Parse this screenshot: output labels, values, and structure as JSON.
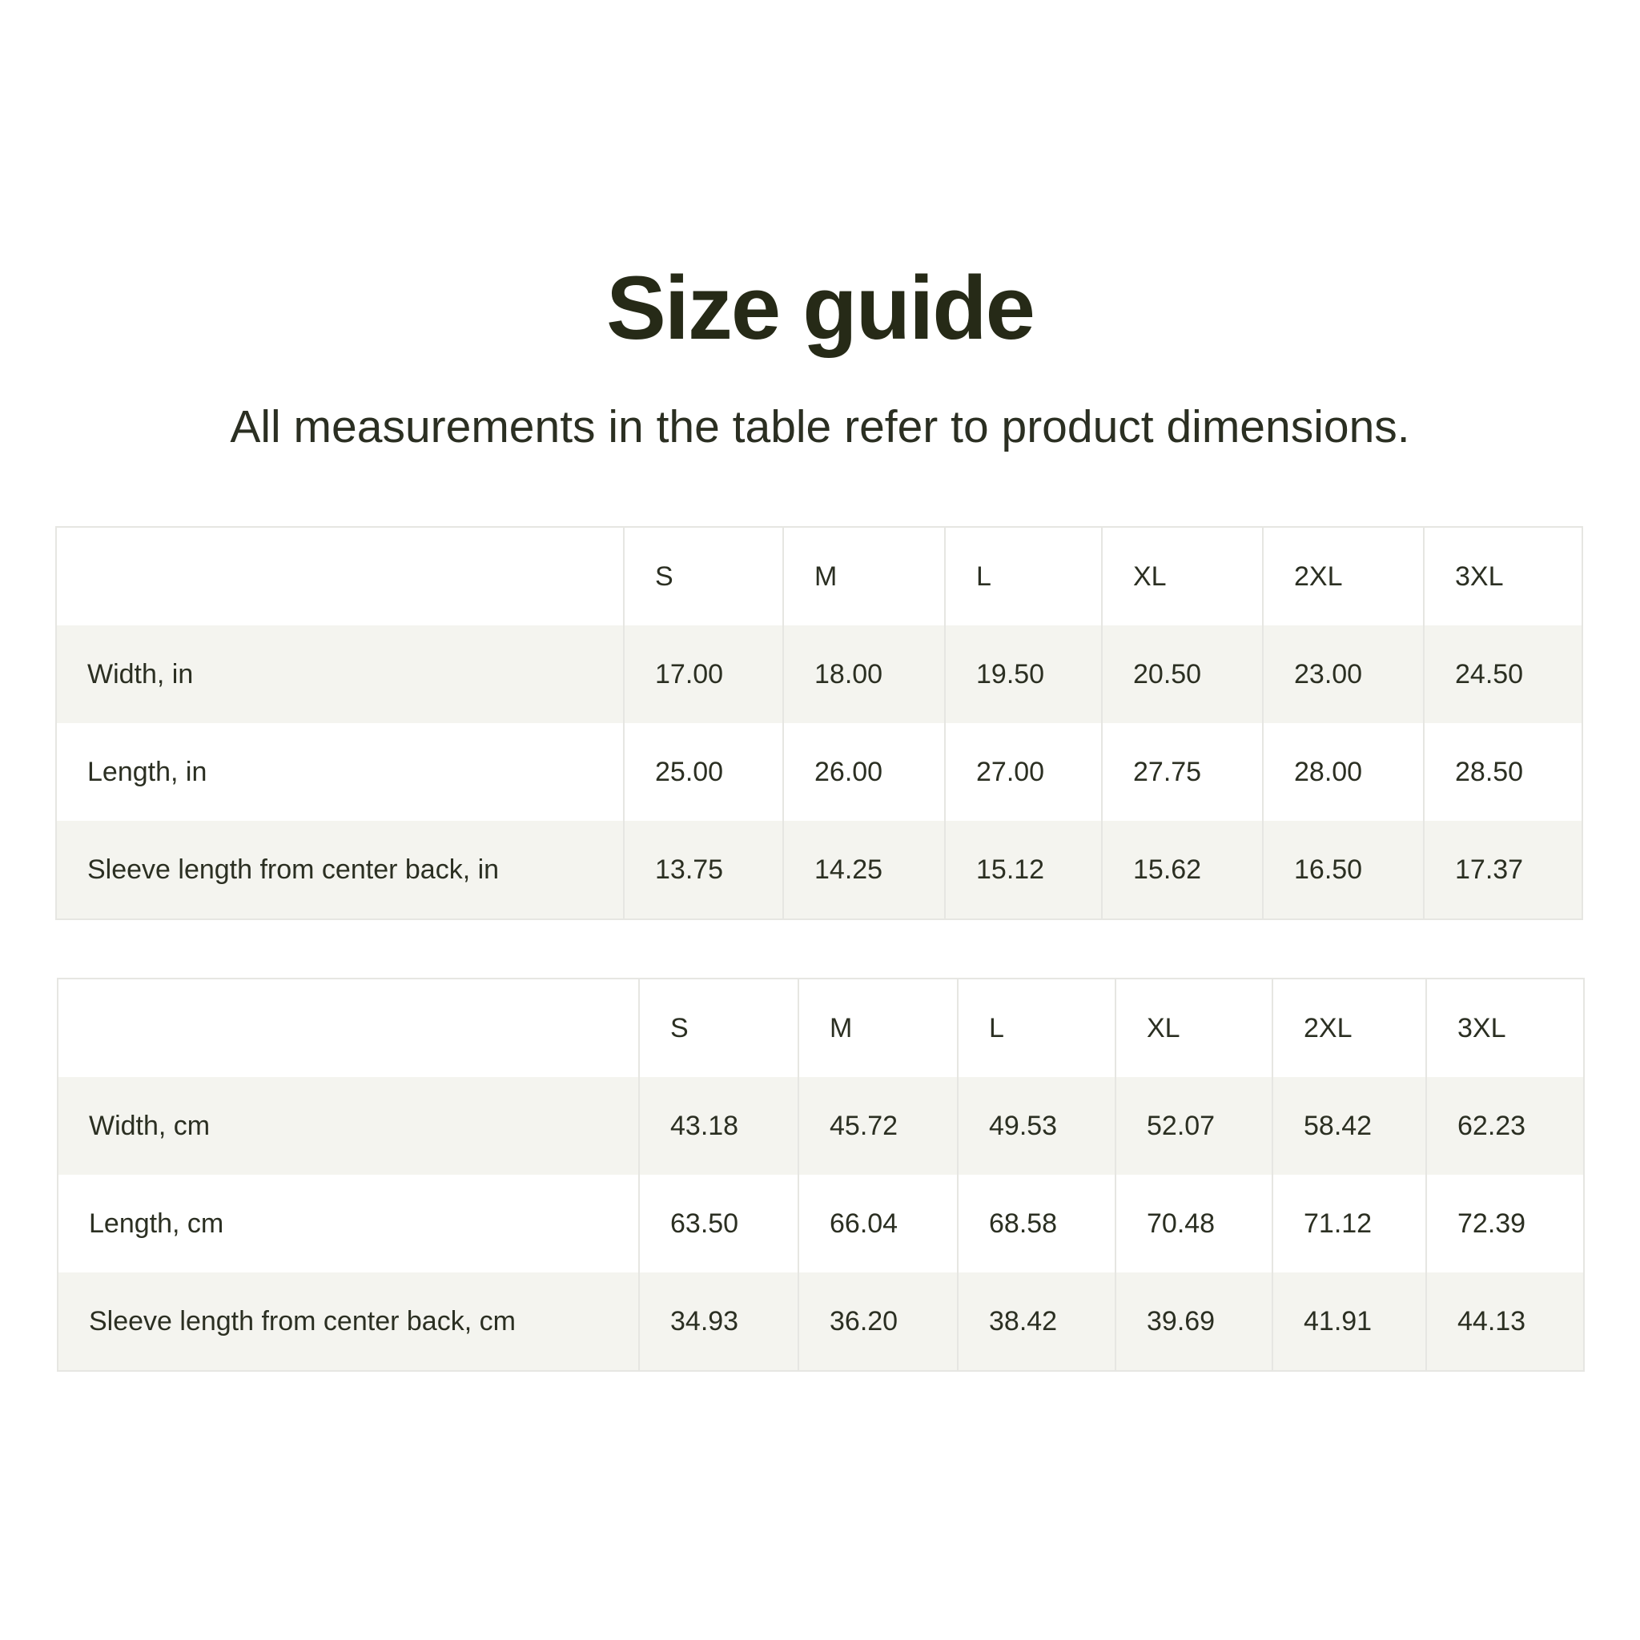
{
  "title": "Size guide",
  "subtitle": "All measurements in the table refer to product dimensions.",
  "colors": {
    "text": "#2b2f22",
    "stripe": "#f4f4ef",
    "border": "#e6e6e2"
  },
  "tables": [
    {
      "headers": [
        "",
        "S",
        "M",
        "L",
        "XL",
        "2XL",
        "3XL"
      ],
      "rows": [
        {
          "label": "Width, in",
          "values": [
            "17.00",
            "18.00",
            "19.50",
            "20.50",
            "23.00",
            "24.50"
          ]
        },
        {
          "label": "Length, in",
          "values": [
            "25.00",
            "26.00",
            "27.00",
            "27.75",
            "28.00",
            "28.50"
          ]
        },
        {
          "label": "Sleeve length from center back, in",
          "values": [
            "13.75",
            "14.25",
            "15.12",
            "15.62",
            "16.50",
            "17.37"
          ]
        }
      ]
    },
    {
      "headers": [
        "",
        "S",
        "M",
        "L",
        "XL",
        "2XL",
        "3XL"
      ],
      "rows": [
        {
          "label": "Width, cm",
          "values": [
            "43.18",
            "45.72",
            "49.53",
            "52.07",
            "58.42",
            "62.23"
          ]
        },
        {
          "label": "Length, cm",
          "values": [
            "63.50",
            "66.04",
            "68.58",
            "70.48",
            "71.12",
            "72.39"
          ]
        },
        {
          "label": "Sleeve length from center back, cm",
          "values": [
            "34.93",
            "36.20",
            "38.42",
            "39.69",
            "41.91",
            "44.13"
          ]
        }
      ]
    }
  ]
}
